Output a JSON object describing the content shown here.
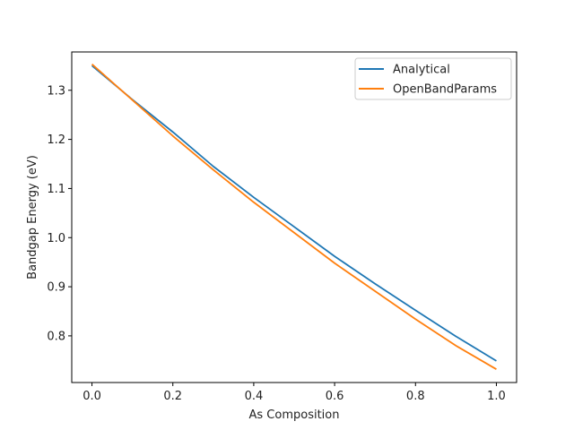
{
  "chart_data": {
    "type": "line",
    "xlabel": "As Composition",
    "ylabel": "Bandgap Energy (eV)",
    "xlim": [
      -0.05,
      1.05
    ],
    "ylim": [
      0.705,
      1.378
    ],
    "xticks": [
      0.0,
      0.2,
      0.4,
      0.6,
      0.8,
      1.0
    ],
    "xtick_labels": [
      "0.0",
      "0.2",
      "0.4",
      "0.6",
      "0.8",
      "1.0"
    ],
    "yticks": [
      0.8,
      0.9,
      1.0,
      1.1,
      1.2,
      1.3
    ],
    "ytick_labels": [
      "0.8",
      "0.9",
      "1.0",
      "1.1",
      "1.2",
      "1.3"
    ],
    "grid": false,
    "legend_position": "top-right",
    "x": [
      0.0,
      0.1,
      0.2,
      0.3,
      0.4,
      0.5,
      0.6,
      0.7,
      0.8,
      0.9,
      1.0
    ],
    "series": [
      {
        "name": "Analytical",
        "color": "#1f77b4",
        "values": [
          1.35,
          1.281,
          1.215,
          1.145,
          1.082,
          1.022,
          0.962,
          0.906,
          0.852,
          0.799,
          0.749
        ]
      },
      {
        "name": "OpenBandParams",
        "color": "#ff7f0e",
        "values": [
          1.353,
          1.28,
          1.207,
          1.138,
          1.072,
          1.01,
          0.948,
          0.891,
          0.834,
          0.78,
          0.732
        ]
      }
    ]
  }
}
